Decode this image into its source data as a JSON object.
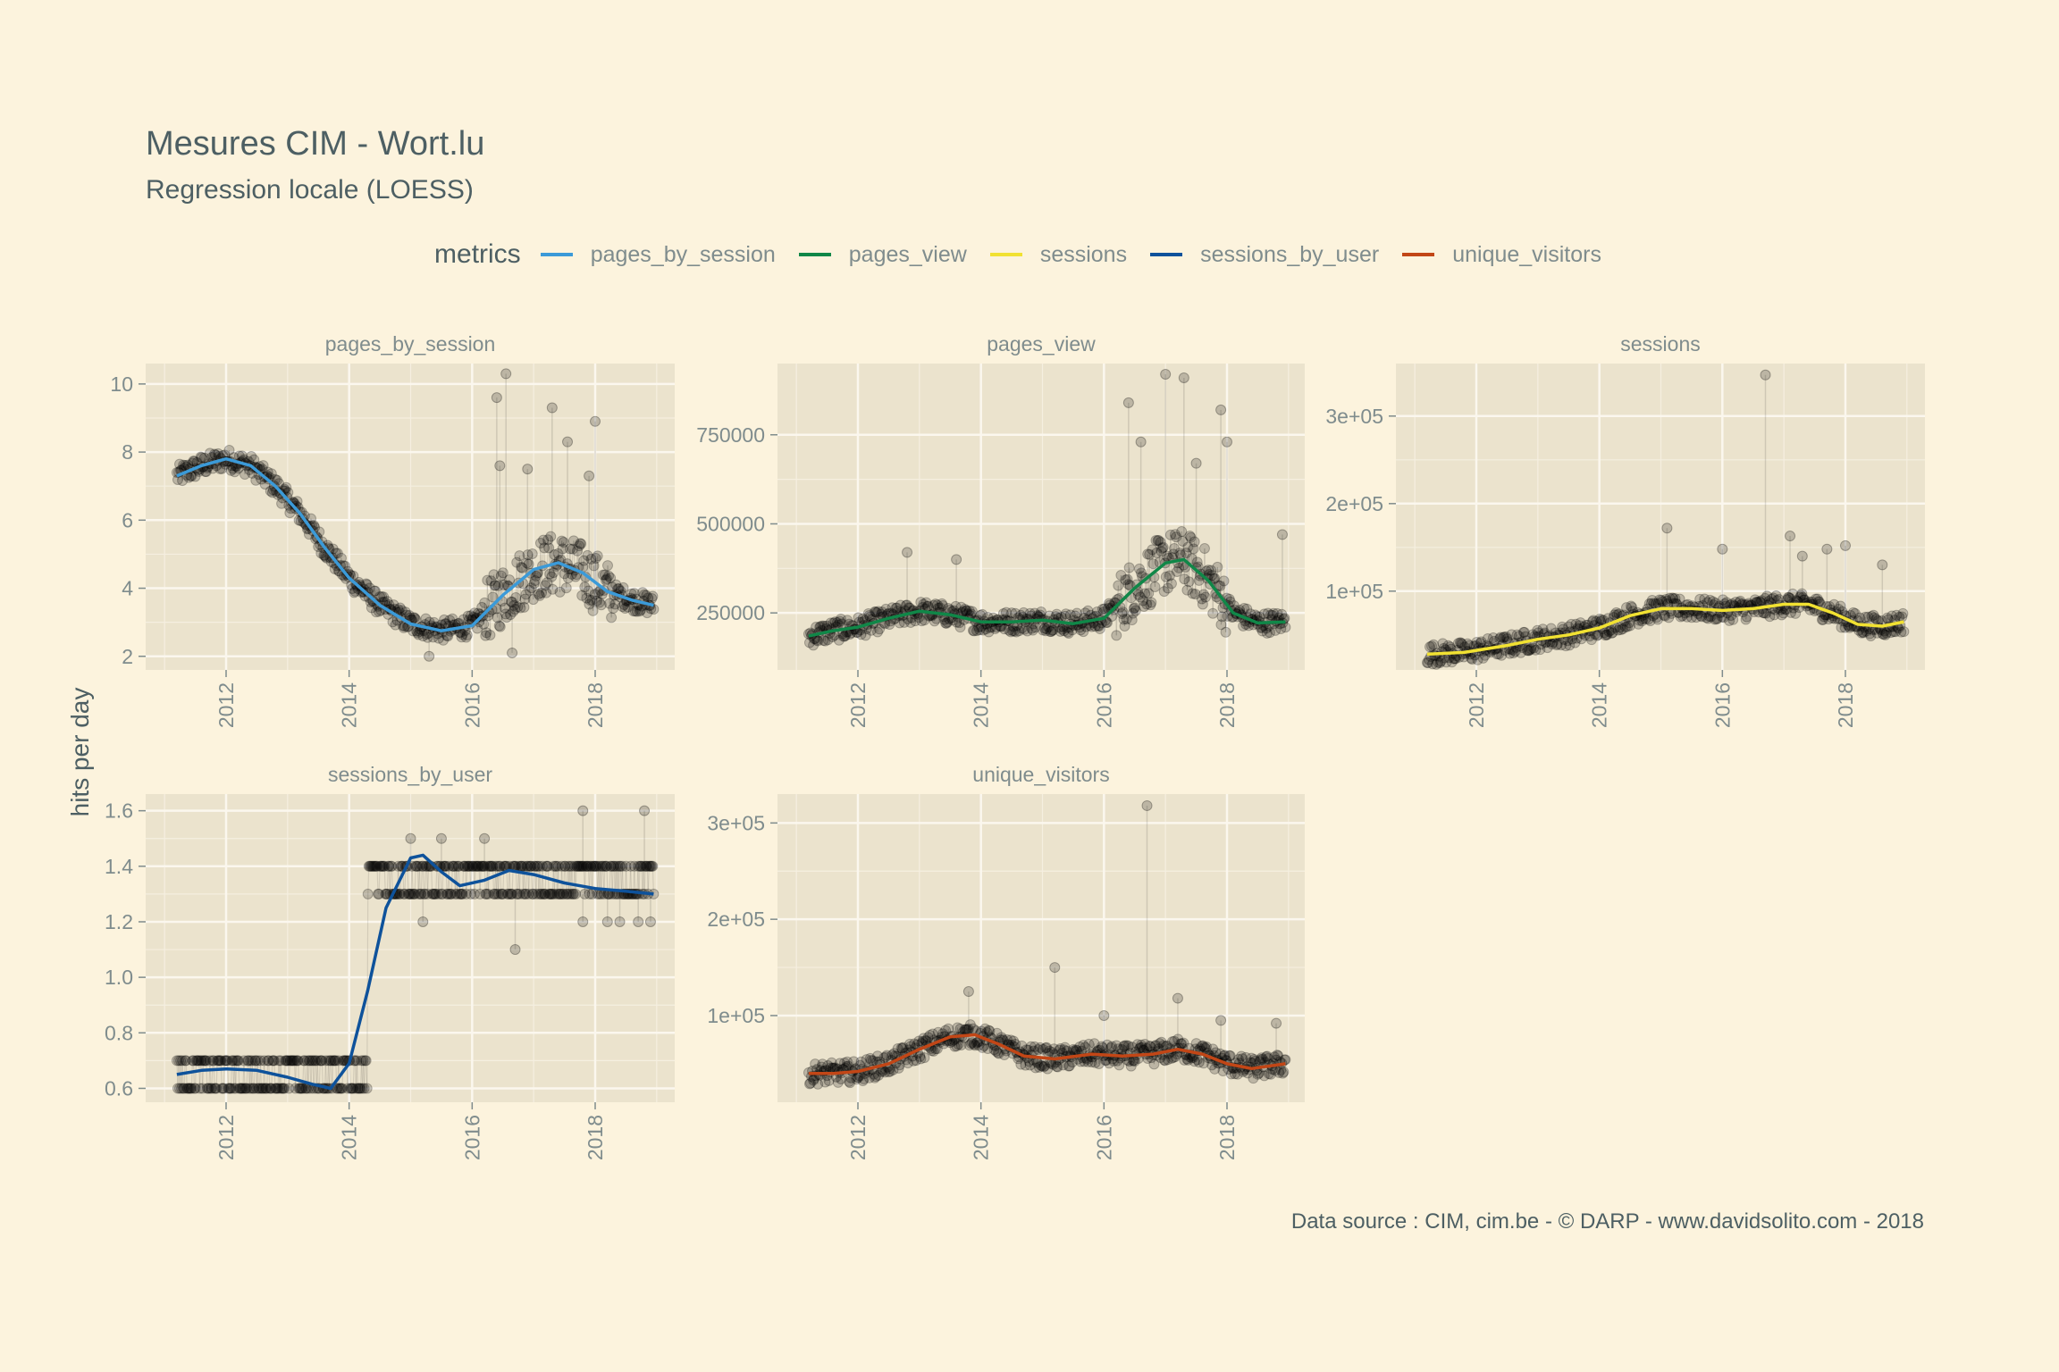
{
  "title": "Mesures CIM - Wort.lu",
  "subtitle": "Regression locale (LOESS)",
  "caption": "Data source : CIM, cim.be - © DARP - www.davidsolito.com - 2018",
  "legend": {
    "title": "metrics",
    "items": [
      {
        "label": "pages_by_session",
        "color": "#3b9ad8"
      },
      {
        "label": "pages_view",
        "color": "#108748"
      },
      {
        "label": "sessions",
        "color": "#f1e132"
      },
      {
        "label": "sessions_by_user",
        "color": "#0e529b"
      },
      {
        "label": "unique_visitors",
        "color": "#c24616"
      }
    ]
  },
  "chart_data": {
    "type": "scatter",
    "ylabel": "hits per day",
    "xlabel": "",
    "x_ticks": [
      "2012",
      "2014",
      "2016",
      "2018"
    ],
    "x_range": [
      2011.2,
      2018.95
    ],
    "grid": true,
    "legend_position": "top",
    "panels": [
      {
        "name": "pages_by_session",
        "color": "#3b9ad8",
        "ylim": [
          1.6,
          10.6
        ],
        "y_ticks": [
          2,
          4,
          6,
          8,
          10
        ],
        "y_tick_labels": [
          "2",
          "4",
          "6",
          "8",
          "10"
        ],
        "loess": [
          [
            2011.2,
            7.3
          ],
          [
            2011.6,
            7.6
          ],
          [
            2012.0,
            7.8
          ],
          [
            2012.4,
            7.6
          ],
          [
            2012.8,
            7.0
          ],
          [
            2013.2,
            6.2
          ],
          [
            2013.6,
            5.2
          ],
          [
            2014.0,
            4.3
          ],
          [
            2014.5,
            3.5
          ],
          [
            2015.0,
            2.95
          ],
          [
            2015.5,
            2.75
          ],
          [
            2016.0,
            2.9
          ],
          [
            2016.5,
            3.8
          ],
          [
            2017.0,
            4.55
          ],
          [
            2017.4,
            4.75
          ],
          [
            2017.8,
            4.45
          ],
          [
            2018.2,
            3.9
          ],
          [
            2018.6,
            3.65
          ],
          [
            2018.95,
            3.5
          ]
        ],
        "outliers": [
          [
            2016.4,
            9.6
          ],
          [
            2016.45,
            7.6
          ],
          [
            2016.55,
            10.3
          ],
          [
            2016.9,
            7.5
          ],
          [
            2017.3,
            9.3
          ],
          [
            2017.55,
            8.3
          ],
          [
            2017.9,
            7.3
          ],
          [
            2018.0,
            8.9
          ],
          [
            2016.65,
            2.1
          ],
          [
            2015.3,
            2.0
          ]
        ]
      },
      {
        "name": "pages_view",
        "color": "#108748",
        "ylim": [
          90000,
          950000
        ],
        "y_ticks": [
          250000,
          500000,
          750000
        ],
        "y_tick_labels": [
          "250000",
          "500000",
          "750000"
        ],
        "loess": [
          [
            2011.2,
            185000
          ],
          [
            2011.6,
            200000
          ],
          [
            2012.0,
            210000
          ],
          [
            2012.5,
            235000
          ],
          [
            2013.0,
            255000
          ],
          [
            2013.5,
            245000
          ],
          [
            2014.0,
            225000
          ],
          [
            2014.5,
            225000
          ],
          [
            2015.0,
            230000
          ],
          [
            2015.5,
            220000
          ],
          [
            2016.0,
            235000
          ],
          [
            2016.5,
            320000
          ],
          [
            2017.0,
            390000
          ],
          [
            2017.3,
            400000
          ],
          [
            2017.7,
            340000
          ],
          [
            2018.1,
            250000
          ],
          [
            2018.5,
            222000
          ],
          [
            2018.95,
            225000
          ]
        ],
        "outliers": [
          [
            2012.8,
            420000
          ],
          [
            2013.6,
            400000
          ],
          [
            2016.4,
            840000
          ],
          [
            2016.6,
            730000
          ],
          [
            2017.0,
            920000
          ],
          [
            2017.3,
            910000
          ],
          [
            2017.5,
            670000
          ],
          [
            2017.9,
            820000
          ],
          [
            2018.0,
            730000
          ],
          [
            2018.9,
            470000
          ]
        ]
      },
      {
        "name": "sessions",
        "color": "#f1e132",
        "ylim": [
          10000,
          360000
        ],
        "y_ticks": [
          100000,
          200000,
          300000
        ],
        "y_tick_labels": [
          "1e+05",
          "2e+05",
          "3e+05"
        ],
        "loess": [
          [
            2011.2,
            28000
          ],
          [
            2011.8,
            30000
          ],
          [
            2012.5,
            38000
          ],
          [
            2013.0,
            45000
          ],
          [
            2013.5,
            50000
          ],
          [
            2014.0,
            58000
          ],
          [
            2014.5,
            72000
          ],
          [
            2015.0,
            80000
          ],
          [
            2015.5,
            80000
          ],
          [
            2016.0,
            78000
          ],
          [
            2016.5,
            80000
          ],
          [
            2017.0,
            85000
          ],
          [
            2017.4,
            85000
          ],
          [
            2017.8,
            75000
          ],
          [
            2018.2,
            62000
          ],
          [
            2018.6,
            60000
          ],
          [
            2018.95,
            65000
          ]
        ],
        "outliers": [
          [
            2015.1,
            172000
          ],
          [
            2016.0,
            148000
          ],
          [
            2016.7,
            347000
          ],
          [
            2017.1,
            163000
          ],
          [
            2017.3,
            140000
          ],
          [
            2017.7,
            148000
          ],
          [
            2018.0,
            152000
          ],
          [
            2018.6,
            130000
          ]
        ]
      },
      {
        "name": "sessions_by_user",
        "color": "#0e529b",
        "ylim": [
          0.55,
          1.66
        ],
        "y_ticks": [
          0.6,
          0.8,
          1.0,
          1.2,
          1.4,
          1.6
        ],
        "y_tick_labels": [
          "0.6",
          "0.8",
          "1.0",
          "1.2",
          "1.4",
          "1.6"
        ],
        "loess": [
          [
            2011.2,
            0.65
          ],
          [
            2011.6,
            0.665
          ],
          [
            2012.0,
            0.67
          ],
          [
            2012.5,
            0.665
          ],
          [
            2013.0,
            0.64
          ],
          [
            2013.4,
            0.615
          ],
          [
            2013.7,
            0.6
          ],
          [
            2014.0,
            0.69
          ],
          [
            2014.3,
            0.95
          ],
          [
            2014.6,
            1.25
          ],
          [
            2015.0,
            1.43
          ],
          [
            2015.2,
            1.44
          ],
          [
            2015.5,
            1.38
          ],
          [
            2015.8,
            1.33
          ],
          [
            2016.2,
            1.35
          ],
          [
            2016.6,
            1.385
          ],
          [
            2017.0,
            1.37
          ],
          [
            2017.5,
            1.34
          ],
          [
            2018.0,
            1.32
          ],
          [
            2018.5,
            1.31
          ],
          [
            2018.95,
            1.3
          ]
        ],
        "outliers": [
          [
            2015.0,
            1.5
          ],
          [
            2015.5,
            1.5
          ],
          [
            2016.2,
            1.5
          ],
          [
            2017.8,
            1.6
          ],
          [
            2018.8,
            1.6
          ],
          [
            2015.2,
            1.2
          ],
          [
            2016.7,
            1.1
          ],
          [
            2017.8,
            1.2
          ],
          [
            2018.2,
            1.2
          ],
          [
            2018.4,
            1.2
          ],
          [
            2018.7,
            1.2
          ],
          [
            2018.9,
            1.2
          ]
        ]
      },
      {
        "name": "unique_visitors",
        "color": "#c24616",
        "ylim": [
          10000,
          330000
        ],
        "y_ticks": [
          100000,
          200000,
          300000
        ],
        "y_tick_labels": [
          "1e+05",
          "2e+05",
          "3e+05"
        ],
        "loess": [
          [
            2011.2,
            40000
          ],
          [
            2011.6,
            40000
          ],
          [
            2012.0,
            42000
          ],
          [
            2012.5,
            50000
          ],
          [
            2013.0,
            65000
          ],
          [
            2013.5,
            78000
          ],
          [
            2013.9,
            80000
          ],
          [
            2014.3,
            70000
          ],
          [
            2014.7,
            58000
          ],
          [
            2015.2,
            55000
          ],
          [
            2015.8,
            60000
          ],
          [
            2016.3,
            58000
          ],
          [
            2016.8,
            60000
          ],
          [
            2017.2,
            65000
          ],
          [
            2017.6,
            60000
          ],
          [
            2018.0,
            50000
          ],
          [
            2018.4,
            45000
          ],
          [
            2018.95,
            50000
          ]
        ],
        "outliers": [
          [
            2013.8,
            125000
          ],
          [
            2015.2,
            150000
          ],
          [
            2016.7,
            318000
          ],
          [
            2016.0,
            100000
          ],
          [
            2017.2,
            118000
          ],
          [
            2017.9,
            95000
          ],
          [
            2018.8,
            92000
          ]
        ]
      }
    ]
  }
}
